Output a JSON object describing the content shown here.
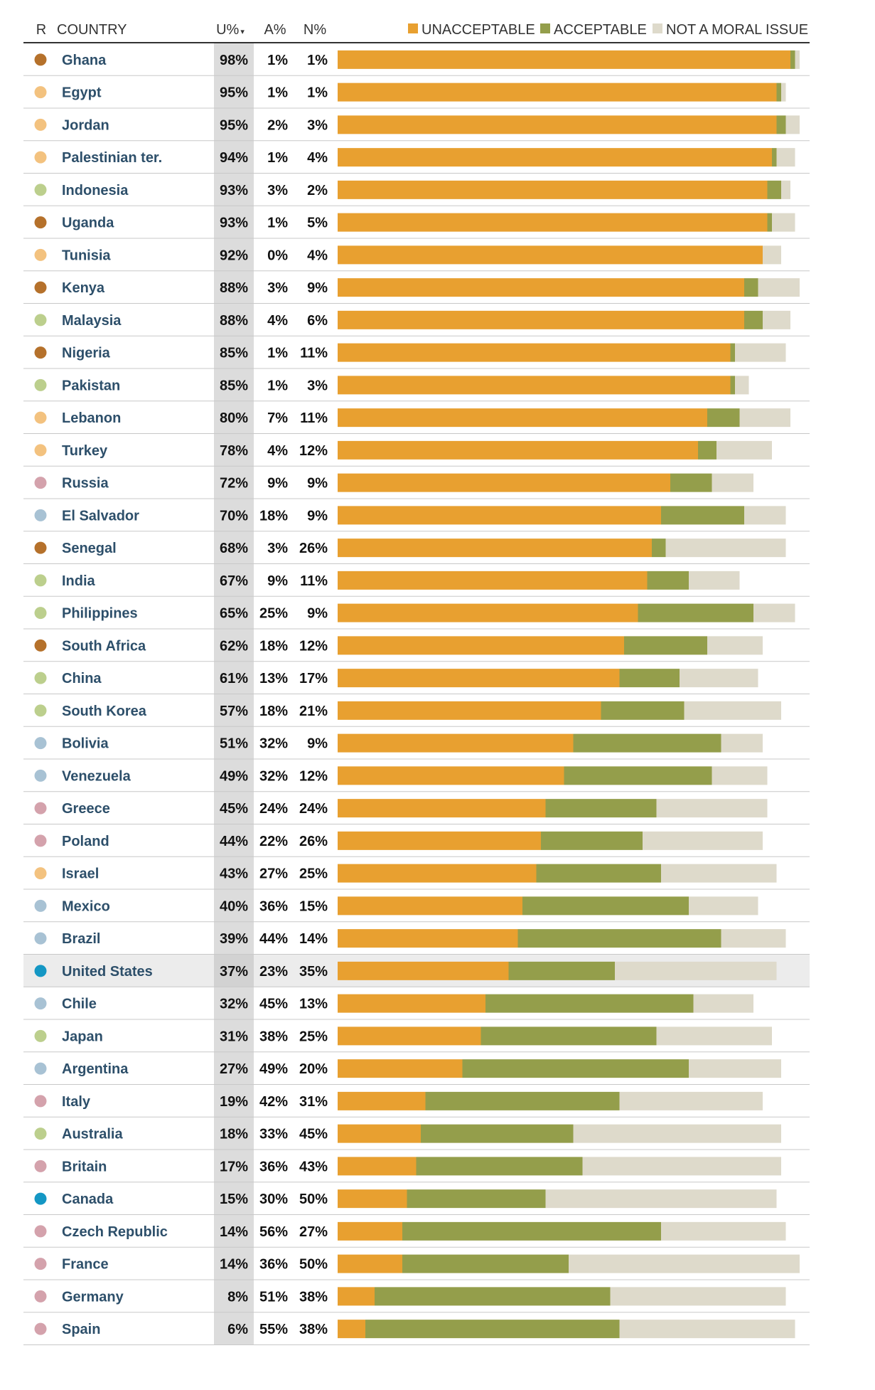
{
  "chart_data": {
    "type": "bar",
    "stacked": true,
    "orientation": "horizontal",
    "columns": {
      "region": "R",
      "country": "COUNTRY",
      "unacceptable": "U%",
      "acceptable": "A%",
      "not_moral": "N%"
    },
    "sort_indicator": "▾",
    "legend_placement": "top-right",
    "series": [
      {
        "name": "UNACCEPTABLE",
        "color": "#e8a030"
      },
      {
        "name": "ACCEPTABLE",
        "color": "#949e4b"
      },
      {
        "name": "NOT A MORAL ISSUE",
        "color": "#dedacb"
      }
    ],
    "region_colors": {
      "africa": "#b5712b",
      "middle-east": "#f3c27f",
      "asia-pacific": "#bccf8d",
      "europe": "#d4a2ac",
      "latin-america": "#a8c2d4",
      "north-america": "#1497c4"
    },
    "highlight_row": "United States",
    "highlight_color": "#ececec",
    "rows": [
      {
        "country": "Ghana",
        "region": "africa",
        "u": 98,
        "a": 1,
        "n": 1
      },
      {
        "country": "Egypt",
        "region": "middle-east",
        "u": 95,
        "a": 1,
        "n": 1
      },
      {
        "country": "Jordan",
        "region": "middle-east",
        "u": 95,
        "a": 2,
        "n": 3
      },
      {
        "country": "Palestinian ter.",
        "region": "middle-east",
        "u": 94,
        "a": 1,
        "n": 4
      },
      {
        "country": "Indonesia",
        "region": "asia-pacific",
        "u": 93,
        "a": 3,
        "n": 2
      },
      {
        "country": "Uganda",
        "region": "africa",
        "u": 93,
        "a": 1,
        "n": 5
      },
      {
        "country": "Tunisia",
        "region": "middle-east",
        "u": 92,
        "a": 0,
        "n": 4
      },
      {
        "country": "Kenya",
        "region": "africa",
        "u": 88,
        "a": 3,
        "n": 9
      },
      {
        "country": "Malaysia",
        "region": "asia-pacific",
        "u": 88,
        "a": 4,
        "n": 6
      },
      {
        "country": "Nigeria",
        "region": "africa",
        "u": 85,
        "a": 1,
        "n": 11
      },
      {
        "country": "Pakistan",
        "region": "asia-pacific",
        "u": 85,
        "a": 1,
        "n": 3
      },
      {
        "country": "Lebanon",
        "region": "middle-east",
        "u": 80,
        "a": 7,
        "n": 11
      },
      {
        "country": "Turkey",
        "region": "middle-east",
        "u": 78,
        "a": 4,
        "n": 12
      },
      {
        "country": "Russia",
        "region": "europe",
        "u": 72,
        "a": 9,
        "n": 9
      },
      {
        "country": "El Salvador",
        "region": "latin-america",
        "u": 70,
        "a": 18,
        "n": 9
      },
      {
        "country": "Senegal",
        "region": "africa",
        "u": 68,
        "a": 3,
        "n": 26
      },
      {
        "country": "India",
        "region": "asia-pacific",
        "u": 67,
        "a": 9,
        "n": 11
      },
      {
        "country": "Philippines",
        "region": "asia-pacific",
        "u": 65,
        "a": 25,
        "n": 9
      },
      {
        "country": "South Africa",
        "region": "africa",
        "u": 62,
        "a": 18,
        "n": 12
      },
      {
        "country": "China",
        "region": "asia-pacific",
        "u": 61,
        "a": 13,
        "n": 17
      },
      {
        "country": "South Korea",
        "region": "asia-pacific",
        "u": 57,
        "a": 18,
        "n": 21
      },
      {
        "country": "Bolivia",
        "region": "latin-america",
        "u": 51,
        "a": 32,
        "n": 9
      },
      {
        "country": "Venezuela",
        "region": "latin-america",
        "u": 49,
        "a": 32,
        "n": 12
      },
      {
        "country": "Greece",
        "region": "europe",
        "u": 45,
        "a": 24,
        "n": 24
      },
      {
        "country": "Poland",
        "region": "europe",
        "u": 44,
        "a": 22,
        "n": 26
      },
      {
        "country": "Israel",
        "region": "middle-east",
        "u": 43,
        "a": 27,
        "n": 25
      },
      {
        "country": "Mexico",
        "region": "latin-america",
        "u": 40,
        "a": 36,
        "n": 15
      },
      {
        "country": "Brazil",
        "region": "latin-america",
        "u": 39,
        "a": 44,
        "n": 14
      },
      {
        "country": "United States",
        "region": "north-america",
        "u": 37,
        "a": 23,
        "n": 35
      },
      {
        "country": "Chile",
        "region": "latin-america",
        "u": 32,
        "a": 45,
        "n": 13
      },
      {
        "country": "Japan",
        "region": "asia-pacific",
        "u": 31,
        "a": 38,
        "n": 25
      },
      {
        "country": "Argentina",
        "region": "latin-america",
        "u": 27,
        "a": 49,
        "n": 20
      },
      {
        "country": "Italy",
        "region": "europe",
        "u": 19,
        "a": 42,
        "n": 31
      },
      {
        "country": "Australia",
        "region": "asia-pacific",
        "u": 18,
        "a": 33,
        "n": 45
      },
      {
        "country": "Britain",
        "region": "europe",
        "u": 17,
        "a": 36,
        "n": 43
      },
      {
        "country": "Canada",
        "region": "north-america",
        "u": 15,
        "a": 30,
        "n": 50
      },
      {
        "country": "Czech Republic",
        "region": "europe",
        "u": 14,
        "a": 56,
        "n": 27
      },
      {
        "country": "France",
        "region": "europe",
        "u": 14,
        "a": 36,
        "n": 50
      },
      {
        "country": "Germany",
        "region": "europe",
        "u": 8,
        "a": 51,
        "n": 38
      },
      {
        "country": "Spain",
        "region": "europe",
        "u": 6,
        "a": 55,
        "n": 38
      }
    ]
  }
}
